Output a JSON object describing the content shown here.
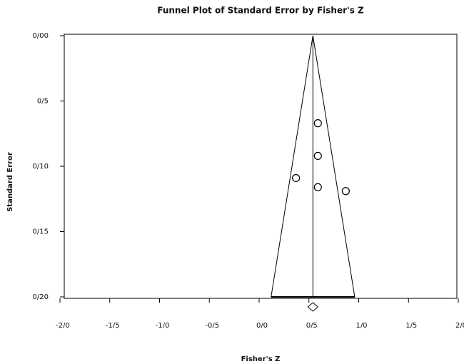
{
  "chart_data": {
    "type": "funnel-scatter",
    "title": "Funnel Plot of Standard Error by Fisher's Z",
    "x_label": "Fisher's Z",
    "y_label": "Standard Error",
    "x": [
      0.59,
      0.59,
      0.37,
      0.59,
      0.87
    ],
    "values": [
      0.067,
      0.092,
      0.109,
      0.116,
      0.119
    ],
    "summary": 0.54,
    "funnel_bottom": [
      0.12,
      0.96
    ],
    "xlim": [
      -2,
      2
    ],
    "ylim": [
      0,
      0.2
    ],
    "y_reversed": true,
    "xticks": [
      {
        "value": -2,
        "label": "-2/0"
      },
      {
        "value": -1.5,
        "label": "-1/5"
      },
      {
        "value": -1,
        "label": "-1/0"
      },
      {
        "value": -0.5,
        "label": "-0/5"
      },
      {
        "value": 0,
        "label": "0/0"
      },
      {
        "value": 0.5,
        "label": "0/5"
      },
      {
        "value": 1,
        "label": "1/0"
      },
      {
        "value": 1.5,
        "label": "1/5"
      },
      {
        "value": 2,
        "label": "2/0"
      }
    ],
    "yticks": [
      {
        "value": 0,
        "label": "0/00"
      },
      {
        "value": 0.05,
        "label": "0/5"
      },
      {
        "value": 0.1,
        "label": "0/10"
      },
      {
        "value": 0.15,
        "label": "0/15"
      },
      {
        "value": 0.2,
        "label": "0/20"
      }
    ],
    "color": "#000000"
  }
}
